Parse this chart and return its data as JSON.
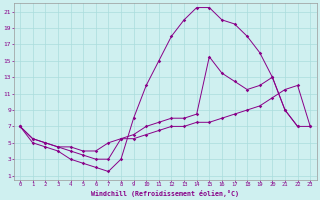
{
  "xlabel": "Windchill (Refroidissement éolien,°C)",
  "xlim": [
    -0.5,
    23.5
  ],
  "ylim": [
    0.5,
    22
  ],
  "xticks": [
    0,
    1,
    2,
    3,
    4,
    5,
    6,
    7,
    8,
    9,
    10,
    11,
    12,
    13,
    14,
    15,
    16,
    17,
    18,
    19,
    20,
    21,
    22,
    23
  ],
  "yticks": [
    1,
    3,
    5,
    7,
    9,
    11,
    13,
    15,
    17,
    19,
    21
  ],
  "bg_color": "#cff0f0",
  "line_color": "#880088",
  "grid_color": "#aadddd",
  "line1_x": [
    0,
    1,
    2,
    3,
    4,
    5,
    6,
    7,
    8,
    9,
    10,
    11,
    12,
    13,
    14,
    15,
    16,
    17,
    18,
    19,
    20,
    21,
    22
  ],
  "line1_y": [
    7,
    5,
    4.5,
    4,
    3,
    2.5,
    2,
    1.5,
    3,
    8,
    12,
    15,
    18,
    20,
    21.5,
    21.5,
    20,
    19.5,
    18,
    16,
    13,
    9,
    7
  ],
  "line2_x": [
    0,
    1,
    2,
    3,
    4,
    5,
    6,
    7,
    8,
    9,
    10,
    11,
    12,
    13,
    14,
    15,
    16,
    17,
    18,
    19,
    20,
    21,
    22,
    23
  ],
  "line2_y": [
    7,
    5.5,
    5,
    4.5,
    4,
    3.5,
    3,
    3,
    5.5,
    6,
    7,
    7.5,
    8,
    8,
    8.5,
    15.5,
    13.5,
    12.5,
    11.5,
    12,
    13,
    9,
    7,
    7
  ],
  "line3_x": [
    0,
    1,
    2,
    3,
    4,
    5,
    6,
    7,
    8,
    9,
    10,
    11,
    12,
    13,
    14,
    15,
    16,
    17,
    18,
    19,
    20,
    21,
    22,
    23
  ],
  "line3_y": [
    7,
    5.5,
    5,
    4.5,
    4.5,
    4,
    4,
    5,
    5.5,
    5.5,
    6,
    6.5,
    7,
    7,
    7.5,
    7.5,
    8,
    8.5,
    9,
    9.5,
    10.5,
    11.5,
    12,
    7
  ]
}
